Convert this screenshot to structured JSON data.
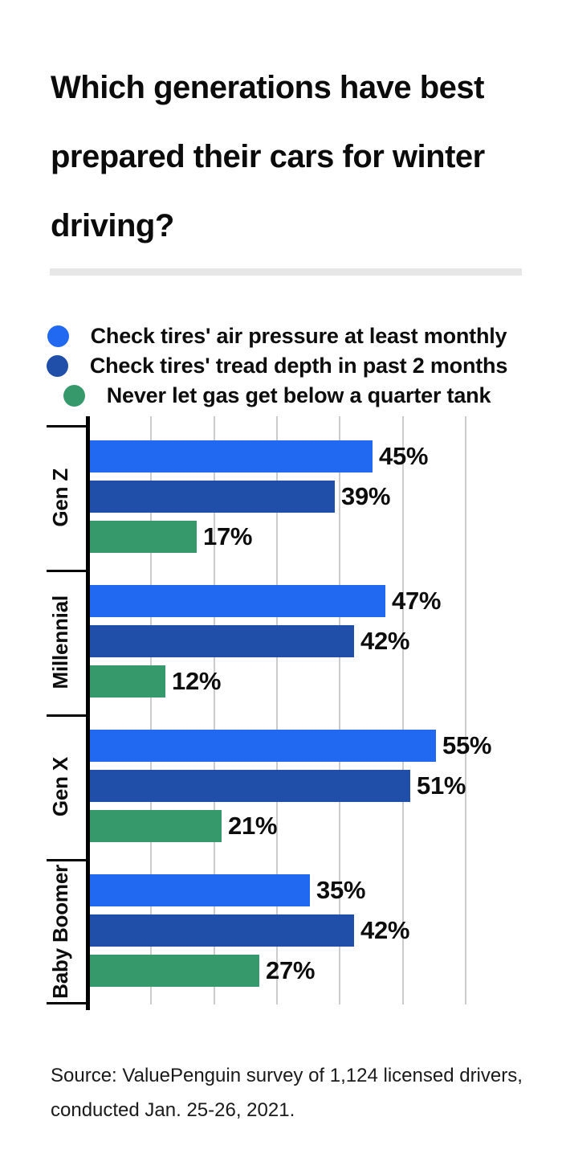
{
  "title": {
    "lines": [
      "Which generations have best",
      "prepared their cars for winter",
      "driving?"
    ]
  },
  "legend": [
    {
      "label": "Check tires' air pressure at least monthly",
      "color": "#2269f2"
    },
    {
      "label": "Check tires' tread depth in past 2 months",
      "color": "#1f4fa8"
    },
    {
      "label": "Never let gas get below a quarter tank",
      "color": "#36996b"
    }
  ],
  "chart_data": {
    "type": "bar",
    "orientation": "horizontal",
    "title": "Which generations have best prepared their cars for winter driving?",
    "categories": [
      "Gen Z",
      "Millennial",
      "Gen X",
      "Baby Boomer"
    ],
    "series": [
      {
        "name": "Check tires' air pressure at least monthly",
        "color": "#2269f2",
        "values": [
          45,
          47,
          55,
          35
        ]
      },
      {
        "name": "Check tires' tread depth in past 2 months",
        "color": "#1f4fa8",
        "values": [
          39,
          42,
          51,
          42
        ]
      },
      {
        "name": "Never let gas get below a quarter tank",
        "color": "#36996b",
        "values": [
          17,
          12,
          21,
          27
        ]
      }
    ],
    "value_suffix": "%",
    "xlim": [
      0,
      60
    ],
    "grid_values": [
      10,
      20,
      30,
      40,
      50,
      60
    ],
    "grid": true,
    "legend_position": "top",
    "data_labels": true,
    "colors": {
      "grid": "#cccccc",
      "axis": "#000000",
      "text": "#0d0d0d",
      "divider": "#e7e7e7"
    }
  },
  "source": {
    "lines": [
      "Source: ValuePenguin survey of 1,124 licensed drivers,",
      "conducted Jan. 25-26, 2021."
    ]
  }
}
